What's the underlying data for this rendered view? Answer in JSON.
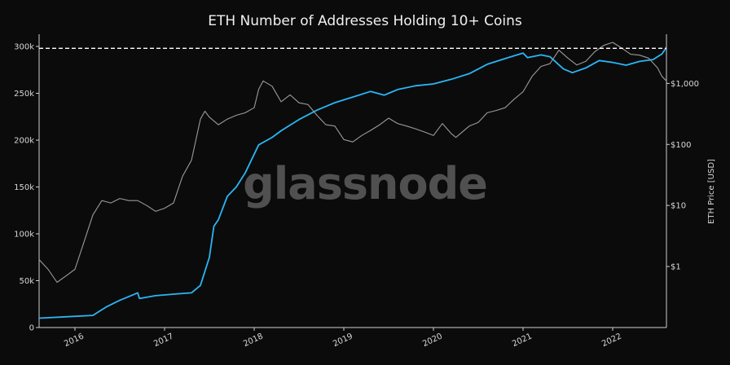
{
  "watermark": "glassnode",
  "chart_data": {
    "type": "line",
    "title": "ETH Number of Addresses Holding 10+ Coins",
    "xlabel": "",
    "ylabel": "",
    "y2label": "ETH Price [USD]",
    "x_ticks": [
      "2016",
      "2017",
      "2018",
      "2019",
      "2020",
      "2021",
      "2022"
    ],
    "y_ticks": [
      {
        "value": 0,
        "label": "0"
      },
      {
        "value": 50000,
        "label": "50k"
      },
      {
        "value": 100000,
        "label": "100k"
      },
      {
        "value": 150000,
        "label": "150k"
      },
      {
        "value": 200000,
        "label": "200k"
      },
      {
        "value": 250000,
        "label": "250k"
      },
      {
        "value": 300000,
        "label": "300k"
      }
    ],
    "y2_ticks": [
      {
        "value": 1,
        "label": "$1"
      },
      {
        "value": 10,
        "label": "$10"
      },
      {
        "value": 100,
        "label": "$100"
      },
      {
        "value": 1000,
        "label": "$1,000"
      }
    ],
    "xlim": [
      2015.6,
      2022.6
    ],
    "ylim": [
      0,
      300000
    ],
    "y2lim": [
      0.1,
      5000
    ],
    "y2_scale": "log",
    "grid": false,
    "ath_line": {
      "value": 298000,
      "style": "dashed",
      "color": "#ffffff"
    },
    "series": [
      {
        "axis": "left",
        "color": "#29b6f6",
        "x": [
          2015.6,
          2015.9,
          2016.2,
          2016.35,
          2016.5,
          2016.6,
          2016.7,
          2016.72,
          2016.9,
          2017.15,
          2017.3,
          2017.4,
          2017.5,
          2017.55,
          2017.6,
          2017.7,
          2017.8,
          2017.9,
          2018.05,
          2018.2,
          2018.3,
          2018.5,
          2018.7,
          2018.9,
          2019.1,
          2019.3,
          2019.45,
          2019.5,
          2019.6,
          2019.8,
          2020.0,
          2020.2,
          2020.4,
          2020.6,
          2020.8,
          2021.0,
          2021.05,
          2021.2,
          2021.3,
          2021.45,
          2021.55,
          2021.7,
          2021.85,
          2022.0,
          2022.15,
          2022.3,
          2022.45,
          2022.55,
          2022.6
        ],
        "y": [
          10000,
          11500,
          13000,
          22000,
          29000,
          33000,
          37000,
          31000,
          34000,
          36000,
          37000,
          45000,
          75000,
          108000,
          115000,
          140000,
          150000,
          165000,
          195000,
          203000,
          210000,
          222000,
          232000,
          240000,
          246000,
          252000,
          248000,
          250000,
          254000,
          258000,
          260000,
          265000,
          271000,
          281000,
          287000,
          293000,
          288000,
          291000,
          289000,
          276000,
          272000,
          277000,
          285000,
          283000,
          280000,
          284000,
          286000,
          292000,
          299000
        ]
      },
      {
        "axis": "right",
        "color": "#9a9a9a",
        "x": [
          2015.6,
          2015.7,
          2015.8,
          2015.9,
          2016.0,
          2016.1,
          2016.2,
          2016.3,
          2016.4,
          2016.5,
          2016.6,
          2016.7,
          2016.8,
          2016.9,
          2017.0,
          2017.1,
          2017.2,
          2017.3,
          2017.4,
          2017.45,
          2017.5,
          2017.6,
          2017.7,
          2017.8,
          2017.9,
          2018.0,
          2018.05,
          2018.1,
          2018.2,
          2018.3,
          2018.4,
          2018.5,
          2018.6,
          2018.7,
          2018.8,
          2018.9,
          2019.0,
          2019.1,
          2019.2,
          2019.3,
          2019.4,
          2019.5,
          2019.6,
          2019.7,
          2019.8,
          2019.9,
          2020.0,
          2020.1,
          2020.2,
          2020.25,
          2020.4,
          2020.5,
          2020.6,
          2020.7,
          2020.8,
          2020.9,
          2021.0,
          2021.1,
          2021.2,
          2021.3,
          2021.4,
          2021.5,
          2021.6,
          2021.7,
          2021.8,
          2021.9,
          2022.0,
          2022.1,
          2022.2,
          2022.3,
          2022.4,
          2022.5,
          2022.55,
          2022.6
        ],
        "y": [
          1.3,
          0.9,
          0.55,
          0.7,
          0.9,
          2.5,
          7,
          12,
          11,
          13,
          12,
          12,
          10,
          8,
          9,
          11,
          30,
          55,
          260,
          350,
          280,
          210,
          260,
          300,
          330,
          400,
          800,
          1100,
          900,
          500,
          650,
          480,
          450,
          300,
          210,
          200,
          120,
          110,
          140,
          170,
          210,
          270,
          220,
          200,
          180,
          160,
          140,
          220,
          150,
          130,
          200,
          230,
          330,
          360,
          400,
          550,
          730,
          1300,
          1900,
          2100,
          3500,
          2600,
          2000,
          2300,
          3300,
          4200,
          4700,
          3800,
          3000,
          2900,
          2600,
          1800,
          1300,
          1100
        ]
      }
    ]
  }
}
